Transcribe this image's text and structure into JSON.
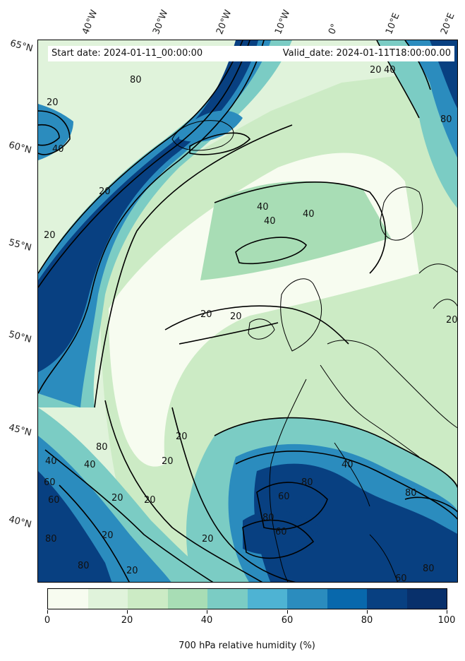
{
  "map": {
    "start_label": "Start date: 2024-01-11_00:00:00",
    "valid_label": "Valid_date: 2024-01-11T18:00:00.00",
    "longitude_labels": [
      "40°W",
      "30°W",
      "20°W",
      "10°W",
      "0°",
      "10°E",
      "20°E"
    ],
    "latitude_labels": [
      "65°N",
      "60°N",
      "55°N",
      "50°N",
      "45°N",
      "40°N"
    ],
    "contour_labels": [
      "20",
      "40",
      "60",
      "80"
    ]
  },
  "colorbar": {
    "title": "700 hPa relative humidity (%)",
    "ticks": [
      "0",
      "20",
      "40",
      "60",
      "80",
      "100"
    ],
    "colors": [
      "#f7fcf0",
      "#e0f3db",
      "#ccebc5",
      "#a8ddb5",
      "#7bccc4",
      "#4eb3d3",
      "#2b8cbe",
      "#0868ac",
      "#084081",
      "#08306b"
    ]
  }
}
